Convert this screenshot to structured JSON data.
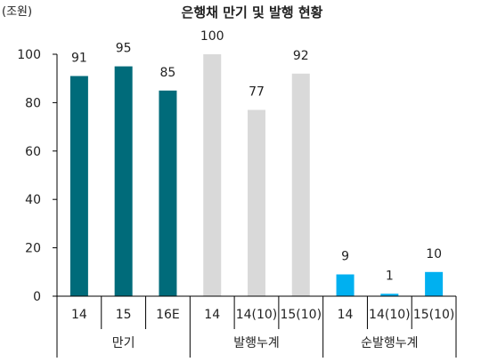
{
  "chart_data": {
    "type": "bar",
    "title": "은행채 만기 및 발행 현황",
    "unit_label": "(조원)",
    "ylim": [
      0,
      100
    ],
    "yticks": [
      0,
      20,
      40,
      60,
      80,
      100
    ],
    "groups": [
      {
        "name": "만기",
        "color": "#006b7a",
        "categories": [
          "14",
          "15",
          "16E"
        ],
        "values": [
          91,
          95,
          85
        ]
      },
      {
        "name": "발행누계",
        "color": "#d9d9d9",
        "categories": [
          "14",
          "14(10)",
          "15(10)"
        ],
        "values": [
          100,
          77,
          92
        ]
      },
      {
        "name": "순발행누계",
        "color": "#00b0f0",
        "categories": [
          "14",
          "14(10)",
          "15(10)"
        ],
        "values": [
          9,
          1,
          10
        ]
      }
    ],
    "grid": false
  }
}
